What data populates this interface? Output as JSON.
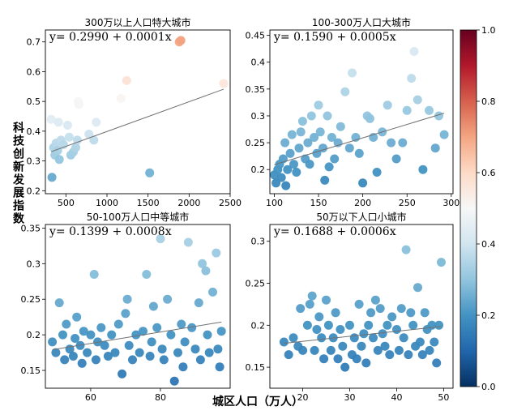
{
  "ylabel": "科技创新发展指数",
  "xlabel": "城区人口（万人）",
  "colorbar": {
    "min": 0.0,
    "max": 1.0,
    "ticks": [
      "0.0",
      "0.2",
      "0.4",
      "0.6",
      "0.8",
      "1.0"
    ],
    "colormap": "RdBu_r"
  },
  "chart_data": [
    {
      "type": "scatter",
      "title": "300万以上人口特大城市",
      "equation": "y= 0.2990 + 0.0001x",
      "fit": {
        "intercept": 0.299,
        "slope": 0.0001
      },
      "xlim": [
        250,
        2500
      ],
      "ylim": [
        0.19,
        0.74
      ],
      "xticks": [
        500,
        1000,
        1500,
        2000,
        2500
      ],
      "yticks": [
        0.2,
        0.3,
        0.4,
        0.5,
        0.6,
        0.7
      ],
      "grid": false,
      "points": [
        [
          320,
          0.44
        ],
        [
          330,
          0.245
        ],
        [
          350,
          0.345
        ],
        [
          365,
          0.32
        ],
        [
          380,
          0.36
        ],
        [
          400,
          0.335
        ],
        [
          410,
          0.43
        ],
        [
          420,
          0.305
        ],
        [
          440,
          0.37
        ],
        [
          470,
          0.355
        ],
        [
          520,
          0.42
        ],
        [
          540,
          0.38
        ],
        [
          560,
          0.32
        ],
        [
          590,
          0.33
        ],
        [
          620,
          0.345
        ],
        [
          640,
          0.37
        ],
        [
          650,
          0.5
        ],
        [
          660,
          0.49
        ],
        [
          780,
          0.39
        ],
        [
          840,
          0.37
        ],
        [
          870,
          0.43
        ],
        [
          1170,
          0.51
        ],
        [
          1240,
          0.57
        ],
        [
          1520,
          0.26
        ],
        [
          1880,
          0.7
        ],
        [
          1900,
          0.705
        ],
        [
          2420,
          0.56
        ]
      ]
    },
    {
      "type": "scatter",
      "title": "100-300万人口大城市",
      "equation": "y= 0.1590 + 0.0005x",
      "fit": {
        "intercept": 0.159,
        "slope": 0.0005
      },
      "xlim": [
        95,
        302
      ],
      "ylim": [
        0.155,
        0.46
      ],
      "xticks": [
        100,
        150,
        200,
        250,
        300
      ],
      "yticks": [
        0.2,
        0.25,
        0.3,
        0.35,
        0.4,
        0.45
      ],
      "grid": false,
      "points": [
        [
          100,
          0.19
        ],
        [
          102,
          0.175
        ],
        [
          104,
          0.2
        ],
        [
          106,
          0.21
        ],
        [
          108,
          0.185
        ],
        [
          110,
          0.22
        ],
        [
          112,
          0.25
        ],
        [
          113,
          0.17
        ],
        [
          115,
          0.2
        ],
        [
          118,
          0.23
        ],
        [
          120,
          0.265
        ],
        [
          122,
          0.21
        ],
        [
          125,
          0.195
        ],
        [
          128,
          0.24
        ],
        [
          130,
          0.27
        ],
        [
          132,
          0.29
        ],
        [
          135,
          0.22
        ],
        [
          138,
          0.25
        ],
        [
          140,
          0.21
        ],
        [
          142,
          0.3
        ],
        [
          145,
          0.26
        ],
        [
          148,
          0.23
        ],
        [
          150,
          0.32
        ],
        [
          152,
          0.27
        ],
        [
          155,
          0.24
        ],
        [
          157,
          0.18
        ],
        [
          160,
          0.3
        ],
        [
          162,
          0.205
        ],
        [
          165,
          0.26
        ],
        [
          168,
          0.22
        ],
        [
          172,
          0.25
        ],
        [
          175,
          0.28
        ],
        [
          180,
          0.345
        ],
        [
          185,
          0.24
        ],
        [
          188,
          0.38
        ],
        [
          192,
          0.26
        ],
        [
          196,
          0.23
        ],
        [
          200,
          0.175
        ],
        [
          205,
          0.3
        ],
        [
          208,
          0.295
        ],
        [
          212,
          0.26
        ],
        [
          216,
          0.195
        ],
        [
          222,
          0.27
        ],
        [
          228,
          0.32
        ],
        [
          232,
          0.25
        ],
        [
          238,
          0.22
        ],
        [
          245,
          0.25
        ],
        [
          250,
          0.31
        ],
        [
          255,
          0.37
        ],
        [
          258,
          0.42
        ],
        [
          262,
          0.33
        ],
        [
          268,
          0.2
        ],
        [
          275,
          0.31
        ],
        [
          282,
          0.24
        ],
        [
          286,
          0.3
        ],
        [
          292,
          0.265
        ]
      ]
    },
    {
      "type": "scatter",
      "title": "50-100万人口中等城市",
      "equation": "y= 0.1399 + 0.0008x",
      "fit": {
        "intercept": 0.1399,
        "slope": 0.0008
      },
      "xlim": [
        47,
        100
      ],
      "ylim": [
        0.125,
        0.355
      ],
      "xticks": [
        60,
        80
      ],
      "yticks": [
        0.15,
        0.2,
        0.25,
        0.3,
        0.35
      ],
      "grid": false,
      "points": [
        [
          49,
          0.19
        ],
        [
          50,
          0.175
        ],
        [
          51,
          0.245
        ],
        [
          52,
          0.2
        ],
        [
          52.5,
          0.165
        ],
        [
          53,
          0.215
        ],
        [
          54,
          0.18
        ],
        [
          55,
          0.17
        ],
        [
          55.5,
          0.195
        ],
        [
          56,
          0.225
        ],
        [
          57,
          0.185
        ],
        [
          57.5,
          0.16
        ],
        [
          58,
          0.205
        ],
        [
          59,
          0.175
        ],
        [
          60,
          0.2
        ],
        [
          61,
          0.285
        ],
        [
          61.5,
          0.165
        ],
        [
          62,
          0.19
        ],
        [
          63,
          0.21
        ],
        [
          64,
          0.185
        ],
        [
          65,
          0.17
        ],
        [
          66,
          0.2
        ],
        [
          67,
          0.175
        ],
        [
          68,
          0.215
        ],
        [
          69,
          0.145
        ],
        [
          70,
          0.23
        ],
        [
          70.5,
          0.25
        ],
        [
          71,
          0.185
        ],
        [
          72,
          0.165
        ],
        [
          73,
          0.2
        ],
        [
          74,
          0.175
        ],
        [
          75,
          0.205
        ],
        [
          76,
          0.285
        ],
        [
          77,
          0.17
        ],
        [
          77.5,
          0.19
        ],
        [
          78,
          0.24
        ],
        [
          79,
          0.21
        ],
        [
          80,
          0.335
        ],
        [
          80.5,
          0.18
        ],
        [
          81,
          0.165
        ],
        [
          82,
          0.25
        ],
        [
          83,
          0.2
        ],
        [
          84,
          0.135
        ],
        [
          85,
          0.175
        ],
        [
          86,
          0.215
        ],
        [
          86.5,
          0.155
        ],
        [
          87,
          0.19
        ],
        [
          88,
          0.33
        ],
        [
          89,
          0.21
        ],
        [
          90,
          0.18
        ],
        [
          91,
          0.245
        ],
        [
          91.5,
          0.165
        ],
        [
          92,
          0.3
        ],
        [
          93,
          0.29
        ],
        [
          93.5,
          0.2
        ],
        [
          94,
          0.175
        ],
        [
          95,
          0.26
        ],
        [
          96,
          0.315
        ],
        [
          96.5,
          0.18
        ],
        [
          97,
          0.155
        ],
        [
          97.5,
          0.205
        ]
      ]
    },
    {
      "type": "scatter",
      "title": "50万以下人口小城市",
      "equation": "y= 0.1688 + 0.0006x",
      "fit": {
        "intercept": 0.1688,
        "slope": 0.0006
      },
      "xlim": [
        13,
        52
      ],
      "ylim": [
        0.125,
        0.32
      ],
      "xticks": [
        20,
        30,
        40,
        50
      ],
      "yticks": [
        0.15,
        0.2,
        0.25,
        0.3
      ],
      "grid": false,
      "points": [
        [
          16,
          0.18
        ],
        [
          17,
          0.165
        ],
        [
          18,
          0.185
        ],
        [
          19,
          0.175
        ],
        [
          19.5,
          0.22
        ],
        [
          20,
          0.17
        ],
        [
          21,
          0.2
        ],
        [
          21.5,
          0.225
        ],
        [
          22,
          0.235
        ],
        [
          22.5,
          0.17
        ],
        [
          23,
          0.195
        ],
        [
          23.5,
          0.21
        ],
        [
          24,
          0.185
        ],
        [
          24.5,
          0.16
        ],
        [
          25,
          0.23
        ],
        [
          25.5,
          0.2
        ],
        [
          26,
          0.17
        ],
        [
          26.5,
          0.185
        ],
        [
          27,
          0.215
        ],
        [
          27.5,
          0.16
        ],
        [
          28,
          0.195
        ],
        [
          28.5,
          0.175
        ],
        [
          29,
          0.15
        ],
        [
          30,
          0.2
        ],
        [
          30.5,
          0.165
        ],
        [
          31,
          0.185
        ],
        [
          31.5,
          0.16
        ],
        [
          32,
          0.225
        ],
        [
          32.5,
          0.175
        ],
        [
          33,
          0.19
        ],
        [
          33.5,
          0.155
        ],
        [
          34,
          0.2
        ],
        [
          34.5,
          0.215
        ],
        [
          35,
          0.185
        ],
        [
          35.5,
          0.23
        ],
        [
          36,
          0.17
        ],
        [
          36.5,
          0.22
        ],
        [
          37,
          0.19
        ],
        [
          37.5,
          0.175
        ],
        [
          38,
          0.2
        ],
        [
          38.5,
          0.165
        ],
        [
          39,
          0.21
        ],
        [
          40,
          0.195
        ],
        [
          40.5,
          0.17
        ],
        [
          41,
          0.22
        ],
        [
          41.5,
          0.185
        ],
        [
          42,
          0.29
        ],
        [
          42.5,
          0.165
        ],
        [
          43,
          0.215
        ],
        [
          43.5,
          0.2
        ],
        [
          44,
          0.175
        ],
        [
          44.5,
          0.245
        ],
        [
          45,
          0.18
        ],
        [
          45.5,
          0.165
        ],
        [
          46,
          0.215
        ],
        [
          46.5,
          0.195
        ],
        [
          47,
          0.17
        ],
        [
          47.5,
          0.2
        ],
        [
          48,
          0.18
        ],
        [
          48.5,
          0.155
        ],
        [
          49,
          0.2
        ],
        [
          49.5,
          0.275
        ]
      ]
    }
  ]
}
